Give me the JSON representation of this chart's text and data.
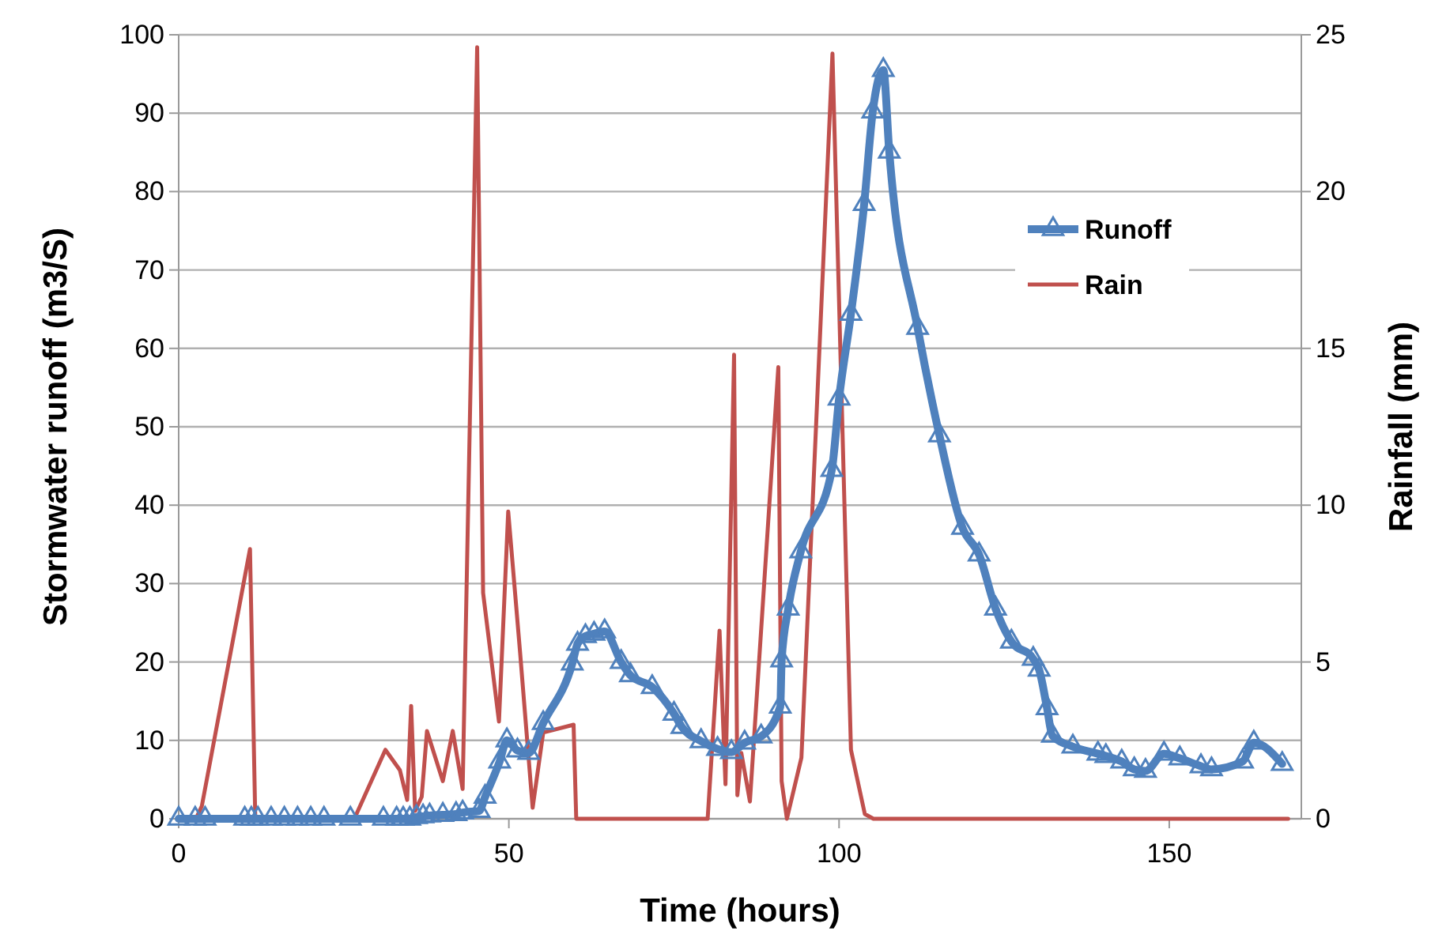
{
  "chart_data": {
    "type": "line",
    "xlabel": "Time (hours)",
    "ylabel": "Stormwater runoff (m3/S)",
    "y2label": "Rainfall (mm)",
    "xlim": [
      0,
      170
    ],
    "xticks": [
      0,
      50,
      100,
      150
    ],
    "ylim": [
      0,
      100
    ],
    "yticks": [
      0,
      10,
      20,
      30,
      40,
      50,
      60,
      70,
      80,
      90,
      100
    ],
    "y2lim": [
      0,
      25
    ],
    "y2ticks": [
      0,
      5,
      10,
      15,
      20,
      25
    ],
    "grid": "y",
    "legend": "right",
    "series": [
      {
        "name": "Runoff",
        "color": "#4f81bd",
        "marker": "triangle",
        "axis": "y",
        "x": [
          0,
          2.5,
          4,
          10,
          11,
          12,
          14,
          16,
          18,
          20,
          22,
          26,
          31,
          33,
          34,
          35,
          36,
          37,
          38,
          40,
          42,
          43,
          45.5,
          46.4,
          48.6,
          49.7,
          51.3,
          53,
          55.2,
          59.6,
          60.4,
          61.6,
          62.9,
          64.5,
          67,
          68.4,
          71.7,
          75,
          76.2,
          79.1,
          81.6,
          83.7,
          85.7,
          88.2,
          91.1,
          91.3,
          92.3,
          94.2,
          98.9,
          100,
          101.8,
          103.8,
          105.1,
          106.7,
          107.6,
          111.9,
          115.2,
          118.7,
          121.2,
          123.7,
          126.1,
          129.4,
          130.3,
          131.5,
          132.3,
          135.4,
          139.2,
          140.4,
          142.8,
          144.7,
          146.4,
          149.2,
          151.6,
          154.8,
          156.4,
          161.1,
          162.8,
          167.1
        ],
        "values": [
          0,
          0,
          0,
          0,
          0,
          0,
          0,
          0,
          0,
          0,
          0,
          0,
          0,
          0,
          0,
          0,
          0.2,
          0.3,
          0.4,
          0.5,
          0.6,
          0.8,
          1,
          2.8,
          7.3,
          10,
          8.7,
          8.4,
          12.2,
          19.8,
          22.3,
          23.3,
          23.6,
          23.9,
          20,
          18.3,
          16.8,
          13.4,
          11.7,
          9.9,
          8.9,
          8.5,
          9.7,
          10.5,
          14.3,
          20.2,
          26.8,
          34.1,
          44.5,
          53.6,
          64.4,
          78.4,
          90.2,
          95.5,
          85.1,
          62.6,
          48.9,
          37.1,
          33.7,
          26.8,
          22.6,
          20.4,
          19,
          14.1,
          10.6,
          9.2,
          8.3,
          8,
          7.3,
          6.3,
          6.1,
          8.3,
          7.7,
          6.7,
          6.3,
          7.3,
          9.7,
          7
        ]
      },
      {
        "name": "Rain",
        "color": "#c0504d",
        "marker": "none",
        "axis": "y2",
        "x": [
          0,
          2.6,
          3.5,
          10.8,
          11.6,
          26.6,
          31.3,
          33.5,
          34.6,
          35.2,
          35.8,
          36.8,
          37.6,
          40,
          41.5,
          43,
          45.2,
          46.1,
          48.5,
          49.9,
          51.7,
          53.6,
          55.2,
          59.8,
          60.2,
          80.1,
          81.9,
          82.8,
          84.1,
          84.6,
          85.2,
          86.5,
          90.8,
          91.3,
          92.1,
          94.3,
          99,
          101.8,
          103.9,
          105.2,
          168
        ],
        "values": [
          0,
          0,
          0.4,
          8.6,
          0,
          0,
          2.2,
          1.55,
          0.6,
          3.6,
          0.25,
          0.7,
          2.8,
          1.2,
          2.8,
          0.95,
          24.6,
          7.2,
          3.1,
          9.8,
          5.3,
          0.35,
          2.75,
          3,
          0,
          0,
          6,
          1.1,
          14.8,
          0.75,
          2.1,
          0.55,
          14.4,
          1.2,
          0,
          1.95,
          24.4,
          2.2,
          0.15,
          0,
          0
        ]
      }
    ]
  }
}
